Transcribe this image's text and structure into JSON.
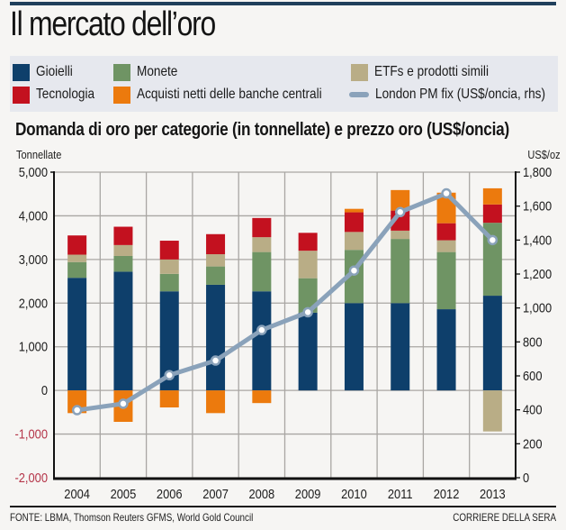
{
  "title": "Il mercato dell’oro",
  "legend": {
    "items": [
      {
        "key": "gioielli",
        "label": "Gioielli",
        "color": "#0e3f6b",
        "shape": "square"
      },
      {
        "key": "monete",
        "label": "Monete",
        "color": "#6f9464",
        "shape": "square"
      },
      {
        "key": "etf",
        "label": "ETFs e prodotti simili",
        "color": "#b9ad86",
        "shape": "square"
      },
      {
        "key": "tecnologia",
        "label": "Tecnologia",
        "color": "#c3111f",
        "shape": "square"
      },
      {
        "key": "banche",
        "label": "Acquisti netti delle banche centrali",
        "color": "#ec7a0d",
        "shape": "square"
      },
      {
        "key": "price",
        "label": "London PM fix (US$/oncia, rhs)",
        "color": "#8aa2ba",
        "shape": "line"
      }
    ]
  },
  "footer": {
    "source": "FONTE: LBMA, Thomson Reuters GFMS, World Gold Council",
    "brand": "CORRIERE DELLA SERA"
  },
  "chart_data": {
    "type": "bar",
    "subtype": "stacked bar with line overlay (dual axis)",
    "title": "Domanda di oro per categorie (in tonnellate) e prezzo oro (US$/oncia)",
    "ylabel": "Tonnellate",
    "y2label": "US$/oz",
    "xlabel": "",
    "ylim": [
      -2000,
      5000
    ],
    "y2lim": [
      0,
      1800
    ],
    "yticks": [
      "5,000",
      "4,000",
      "3,000",
      "2,000",
      "1,000",
      "0",
      "-1,000",
      "-2,000"
    ],
    "ytick_values": [
      5000,
      4000,
      3000,
      2000,
      1000,
      0,
      -1000,
      -2000
    ],
    "y2ticks": [
      "1,800",
      "1,600",
      "1,400",
      "1,200",
      "1,000",
      "800",
      "600",
      "400",
      "200",
      "0"
    ],
    "y2tick_values": [
      1800,
      1600,
      1400,
      1200,
      1000,
      800,
      600,
      400,
      200,
      0
    ],
    "negative_tick_color": "#b5364a",
    "grid": true,
    "categories": [
      "2004",
      "2005",
      "2006",
      "2007",
      "2008",
      "2009",
      "2010",
      "2011",
      "2012",
      "2013"
    ],
    "series": [
      {
        "name": "Gioielli",
        "key": "gioielli",
        "color": "#0e3f6b",
        "values": [
          2580,
          2720,
          2270,
          2420,
          2270,
          1780,
          2000,
          2000,
          1860,
          2170
        ]
      },
      {
        "name": "Monete",
        "key": "monete",
        "color": "#6f9464",
        "values": [
          360,
          360,
          400,
          420,
          900,
          790,
          1220,
          1470,
          1310,
          1670
        ]
      },
      {
        "name": "ETFs e prodotti simili",
        "key": "etf",
        "color": "#b9ad86",
        "values": [
          170,
          250,
          330,
          280,
          340,
          630,
          410,
          190,
          270,
          -940
        ]
      },
      {
        "name": "Tecnologia",
        "key": "tecnologia",
        "color": "#c3111f",
        "values": [
          440,
          420,
          430,
          460,
          440,
          410,
          450,
          460,
          390,
          420
        ]
      },
      {
        "name": "Acquisti netti delle banche centrali",
        "key": "banche",
        "color": "#ec7a0d",
        "values": [
          -520,
          -720,
          -390,
          -520,
          -290,
          0,
          80,
          470,
          700,
          370
        ]
      }
    ],
    "line_series": {
      "name": "London PM fix (US$/oncia, rhs)",
      "color": "#8aa2ba",
      "axis": "right",
      "values": [
        398,
        436,
        604,
        690,
        870,
        975,
        1220,
        1565,
        1675,
        1400
      ]
    }
  }
}
